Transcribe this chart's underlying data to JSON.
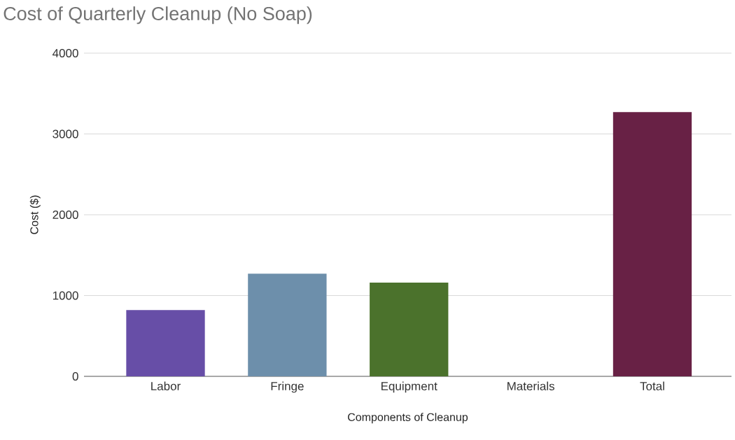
{
  "chart_data": {
    "type": "bar",
    "title": "Cost of Quarterly Cleanup (No Soap)",
    "xlabel": "Components of Cleanup",
    "ylabel": "Cost ($)",
    "categories": [
      "Labor",
      "Fringe",
      "Equipment",
      "Materials",
      "Total"
    ],
    "values": [
      820,
      1270,
      1160,
      0,
      3270
    ],
    "colors": [
      "#674ea7",
      "#6d8fab",
      "#4b722c",
      "#6a1f44",
      "#682145"
    ],
    "ylim": [
      0,
      4000
    ],
    "yticks": [
      0,
      1000,
      2000,
      3000,
      4000
    ],
    "grid": "y"
  }
}
